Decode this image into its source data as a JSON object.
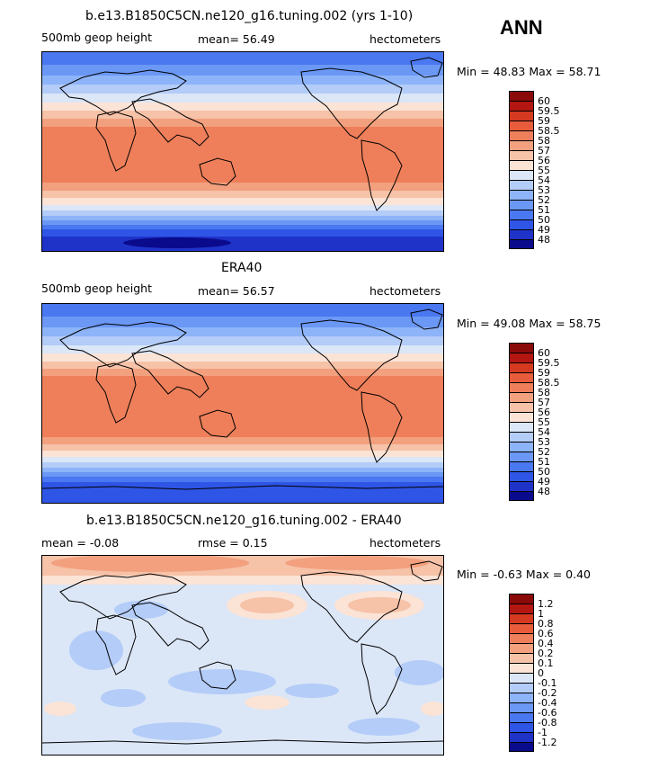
{
  "season": "ANN",
  "palette": [
    "#0a0a8c",
    "#1f33c9",
    "#2f55e6",
    "#4a78f0",
    "#6b98f5",
    "#8db4f8",
    "#b3ccf8",
    "#dbe6f7",
    "#fbe3d6",
    "#f6c2a8",
    "#f2a07e",
    "#ee7f5a",
    "#e85c3c",
    "#d53a21",
    "#b41612",
    "#8a0a0a"
  ],
  "panels": [
    {
      "title": "b.e13.B1850C5CN.ne120_g16.tuning.002 (yrs 1-10)",
      "left_label": "500mb geop height",
      "center_label": "mean=  56.49",
      "units": "hectometers",
      "minmax": "Min =  48.83 Max =  58.71",
      "levels": [
        "60",
        "59.5",
        "59",
        "58.5",
        "58",
        "57",
        "56",
        "55",
        "54",
        "53",
        "52",
        "51",
        "50",
        "49",
        "48"
      ]
    },
    {
      "title": "ERA40",
      "left_label": "500mb geop height",
      "center_label": "mean=  56.57",
      "units": "hectometers",
      "minmax": "Min =  49.08 Max =  58.75",
      "levels": [
        "60",
        "59.5",
        "59",
        "58.5",
        "58",
        "57",
        "56",
        "55",
        "54",
        "53",
        "52",
        "51",
        "50",
        "49",
        "48"
      ]
    },
    {
      "title": "b.e13.B1850C5CN.ne120_g16.tuning.002 - ERA40",
      "left_label": "mean =  -0.08",
      "center_label": "rmse =   0.15",
      "units": "hectometers",
      "minmax": "Min =  -0.63 Max =   0.40",
      "levels": [
        "1.2",
        "1",
        "0.8",
        "0.6",
        "0.4",
        "0.2",
        "0.1",
        "0",
        "-0.1",
        "-0.2",
        "-0.4",
        "-0.6",
        "-0.8",
        "-1",
        "-1.2"
      ]
    }
  ],
  "chart_data": [
    {
      "type": "heatmap",
      "title": "b.e13.B1850C5CN.ne120_g16.tuning.002 (yrs 1-10)",
      "variable": "500mb geop height",
      "units": "hectometers",
      "mean": 56.49,
      "min": 48.83,
      "max": 58.71,
      "contour_levels": [
        48,
        49,
        50,
        51,
        52,
        53,
        54,
        55,
        56,
        57,
        58,
        58.5,
        59,
        59.5,
        60
      ],
      "zonal_profile_lat_value": [
        [
          80,
          51
        ],
        [
          70,
          52
        ],
        [
          60,
          53.5
        ],
        [
          50,
          55
        ],
        [
          40,
          56.5
        ],
        [
          30,
          57.8
        ],
        [
          20,
          58.4
        ],
        [
          10,
          58.6
        ],
        [
          0,
          58.6
        ],
        [
          -10,
          58.6
        ],
        [
          -20,
          58.3
        ],
        [
          -30,
          57.6
        ],
        [
          -40,
          56
        ],
        [
          -50,
          54
        ],
        [
          -60,
          51.5
        ],
        [
          -70,
          49.5
        ],
        [
          -80,
          48.5
        ]
      ]
    },
    {
      "type": "heatmap",
      "title": "ERA40",
      "variable": "500mb geop height",
      "units": "hectometers",
      "mean": 56.57,
      "min": 49.08,
      "max": 58.75,
      "contour_levels": [
        48,
        49,
        50,
        51,
        52,
        53,
        54,
        55,
        56,
        57,
        58,
        58.5,
        59,
        59.5,
        60
      ],
      "zonal_profile_lat_value": [
        [
          80,
          51
        ],
        [
          70,
          52
        ],
        [
          60,
          53.5
        ],
        [
          50,
          55
        ],
        [
          40,
          56.5
        ],
        [
          30,
          57.8
        ],
        [
          20,
          58.5
        ],
        [
          10,
          58.7
        ],
        [
          0,
          58.7
        ],
        [
          -10,
          58.7
        ],
        [
          -20,
          58.4
        ],
        [
          -30,
          57.7
        ],
        [
          -40,
          56
        ],
        [
          -50,
          54
        ],
        [
          -60,
          51.5
        ],
        [
          -70,
          49.8
        ],
        [
          -80,
          49
        ]
      ]
    },
    {
      "type": "heatmap",
      "title": "b.e13.B1850C5CN.ne120_g16.tuning.002 - ERA40",
      "units": "hectometers",
      "mean": -0.08,
      "rmse": 0.15,
      "min": -0.63,
      "max": 0.4,
      "contour_levels": [
        -1.2,
        -1,
        -0.8,
        -0.6,
        -0.4,
        -0.2,
        -0.1,
        0,
        0.1,
        0.2,
        0.4,
        0.6,
        0.8,
        1,
        1.2
      ],
      "zonal_profile_lat_value": [
        [
          80,
          0.3
        ],
        [
          70,
          0.25
        ],
        [
          60,
          0.0
        ],
        [
          50,
          0.1
        ],
        [
          40,
          -0.05
        ],
        [
          30,
          -0.1
        ],
        [
          20,
          -0.1
        ],
        [
          0,
          -0.15
        ],
        [
          -20,
          -0.1
        ],
        [
          -40,
          -0.15
        ],
        [
          -60,
          -0.1
        ],
        [
          -80,
          -0.05
        ]
      ]
    }
  ]
}
